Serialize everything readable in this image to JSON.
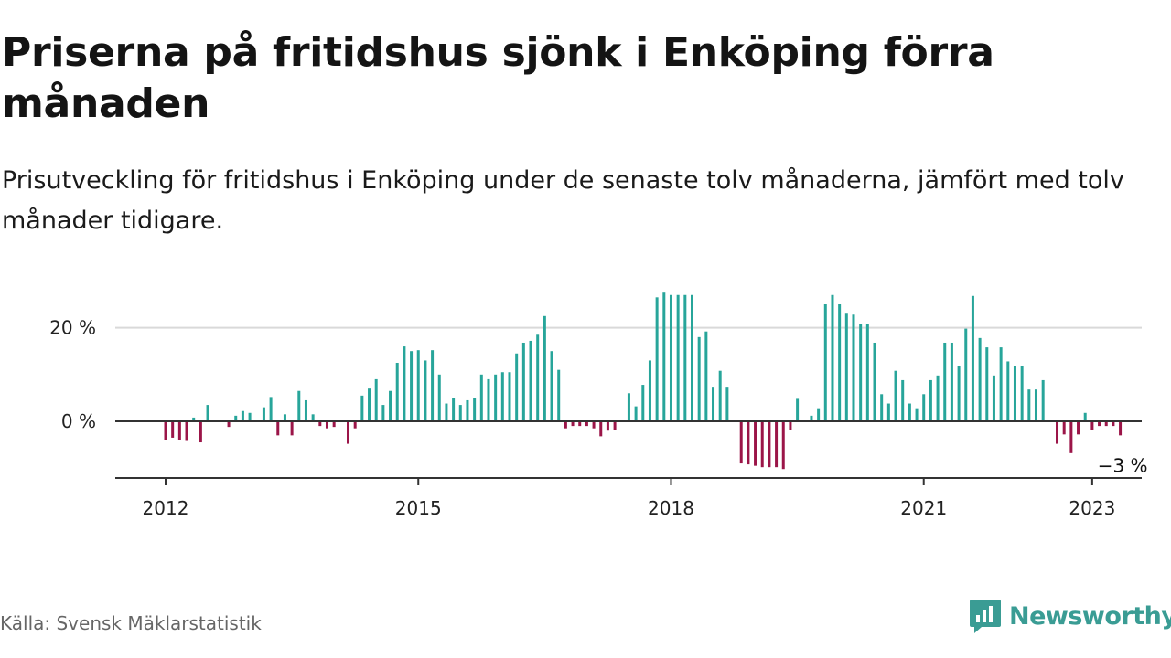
{
  "title": "Priserna på fritidshus sjönk i Enköping förra månaden",
  "subtitle": "Prisutveckling för fritidshus i Enköping under de senaste tolv månaderna, jämfört med tolv månader tidigare.",
  "source": "Källa: Svensk Mäklarstatistik",
  "brand": {
    "name": "Newsworthy",
    "color": "#3a9c94",
    "logo_icon": "bar-chart-icon"
  },
  "colors": {
    "positive": "#27a59a",
    "negative": "#9b1548",
    "grid": "#d9d9d9",
    "axis": "#333333"
  },
  "chart_data": {
    "type": "bar",
    "start": "2012-01",
    "x_ticks": [
      "2012",
      "2015",
      "2018",
      "2021",
      "2023"
    ],
    "y_ticks": [
      {
        "value": 0,
        "label": "0 %"
      },
      {
        "value": 20,
        "label": "20 %"
      }
    ],
    "ylim": [
      -12,
      28
    ],
    "last_value_label": "−3 %",
    "values": [
      -4,
      -3.5,
      -4,
      -4.2,
      0.8,
      -4.5,
      3.5,
      0,
      0,
      -1.2,
      1.2,
      2.2,
      1.8,
      0,
      3,
      5.2,
      -3,
      1.5,
      -3,
      6.5,
      4.5,
      1.5,
      -1,
      -1.5,
      -1.2,
      0,
      -4.8,
      -1.5,
      5.5,
      7,
      9,
      3.5,
      6.5,
      12.5,
      16,
      15,
      15.2,
      13,
      15.2,
      10,
      3.8,
      5,
      3.5,
      4.5,
      5,
      10,
      9,
      10,
      10.5,
      10.5,
      14.5,
      16.8,
      17.2,
      18.5,
      22.5,
      15,
      11,
      -1.5,
      -1,
      -1,
      -1,
      -1.5,
      -3.2,
      -2,
      -1.8,
      0,
      6,
      3.2,
      7.8,
      13,
      26.5,
      27.5,
      27,
      27,
      27,
      27,
      18,
      19.2,
      7.2,
      10.8,
      7.2,
      0,
      -9,
      -9.2,
      -9.5,
      -9.8,
      -9.8,
      -9.8,
      -10.2,
      -1.8,
      4.8,
      0,
      1.2,
      2.8,
      25,
      27,
      25,
      23,
      22.8,
      20.8,
      20.8,
      16.8,
      5.8,
      3.8,
      10.8,
      8.8,
      3.8,
      2.8,
      5.8,
      8.8,
      9.8,
      16.8,
      16.8,
      11.8,
      19.8,
      26.8,
      17.8,
      15.8,
      9.8,
      15.8,
      12.8,
      11.8,
      11.8,
      6.8,
      6.8,
      8.8,
      0,
      -4.8,
      -2.8,
      -6.8,
      -2.8,
      1.8,
      -1.8,
      -1,
      -1,
      -1,
      -3
    ]
  }
}
